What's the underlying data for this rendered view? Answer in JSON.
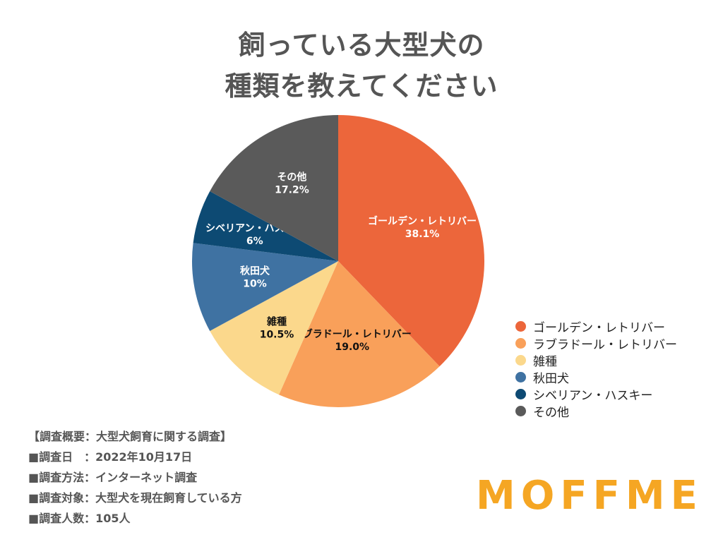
{
  "title_lines": [
    "飼っている大型犬の",
    "種類を教えてください"
  ],
  "chart_data": {
    "type": "pie",
    "categories": [
      "ゴールデン・レトリバー",
      "ラブラドール・レトリバー",
      "雑種",
      "秋田犬",
      "シベリアン・ハスキー",
      "その他"
    ],
    "values": [
      38.1,
      19.0,
      10.5,
      10,
      6,
      17.2
    ],
    "value_labels": [
      "38.1%",
      "19.0%",
      "10.5%",
      "10%",
      "6%",
      "17.2%"
    ],
    "colors": [
      "#ec663b",
      "#f9a05a",
      "#fbd88c",
      "#3f72a2",
      "#0d4a73",
      "#5a5a5a"
    ],
    "label_colors": [
      "#ffffff",
      "#111111",
      "#111111",
      "#ffffff",
      "#ffffff",
      "#ffffff"
    ],
    "legend": {
      "position": "right",
      "items": [
        "ゴールデン・レトリバー",
        "ラブラドール・レトリバー",
        "雑種",
        "秋田犬",
        "シベリアン・ハスキー",
        "その他"
      ]
    }
  },
  "survey": {
    "header": "【調査概要：大型犬飼育に関する調査】",
    "lines": [
      "■調査日　：2022年10月17日",
      "■調査方法：インターネット調査",
      "■調査対象：大型犬を現在飼育している方",
      "■調査人数：105人"
    ]
  },
  "logo": "MOFFME"
}
